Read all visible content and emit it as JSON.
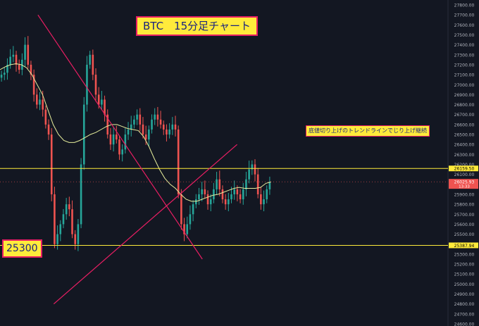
{
  "title": "BTC　15分足チャート",
  "annotation": "底値切り上げのトレンドラインでじり上げ継続",
  "support_label": "25300",
  "price_tags": [
    {
      "value": "26159.50",
      "color": "#ffeb3b",
      "text_color": "#000000"
    },
    {
      "value": "26025.93",
      "sub": "13:33",
      "color": "#ef5350",
      "text_color": "#ffffff"
    },
    {
      "value": "25387.94",
      "color": "#ffeb3b",
      "text_color": "#000000"
    }
  ],
  "colors": {
    "background": "#131722",
    "up": "#26a69a",
    "down": "#ef5350",
    "moving_average": "#e6ee9c",
    "horizontal_line": "#ffeb3b",
    "trend_line": "#e91e63",
    "axis_text": "#b2b5be"
  },
  "chart_data": {
    "type": "line",
    "symbol": "BTC",
    "interval": "15m",
    "y_axis": {
      "position": "right",
      "range": [
        24600,
        27800
      ],
      "ticks": [
        24600,
        24700,
        24800,
        24900,
        25000,
        25100,
        25200,
        25300,
        25400,
        25500,
        25600,
        25700,
        25800,
        25900,
        26000,
        26100,
        26200,
        26300,
        26400,
        26500,
        26600,
        26700,
        26800,
        26900,
        27000,
        27100,
        27200,
        27300,
        27400,
        27500,
        27600,
        27700,
        27800
      ]
    },
    "price_series": {
      "name": "",
      "values": [
        27100,
        27120,
        27200,
        27280,
        27300,
        27200,
        27150,
        27250,
        27400,
        27200,
        27100,
        26900,
        26800,
        26850,
        26750,
        26600,
        26500,
        25900,
        25400,
        25500,
        25600,
        25700,
        25800,
        25750,
        25500,
        25400,
        25600,
        26200,
        26800,
        27200,
        27300,
        27100,
        26900,
        26800,
        26850,
        26700,
        26500,
        26400,
        26500,
        26450,
        26300,
        26350,
        26500,
        26550,
        26600,
        26650,
        26700,
        26600,
        26500,
        26450,
        26550,
        26650,
        26700,
        26650,
        26600,
        26550,
        26500,
        26550,
        26600,
        26550,
        25900,
        25600,
        25500,
        25600,
        25700,
        25800,
        25850,
        25900,
        25950,
        25900,
        25800,
        25850,
        25950,
        26050,
        25950,
        25850,
        25800,
        25850,
        25900,
        25950,
        25900,
        25850,
        25950,
        26050,
        26150,
        26200,
        26100,
        25900,
        25800,
        25850,
        25950,
        26025
      ]
    },
    "moving_average": {
      "name": "",
      "values": [
        27150,
        27180,
        27200,
        27210,
        27200,
        27170,
        27100,
        27000,
        26900,
        26750,
        26600,
        26500,
        26440,
        26420,
        26420,
        26440,
        26470,
        26500,
        26520,
        26550,
        26580,
        26600,
        26600,
        26580,
        26560,
        26550,
        26540,
        26480,
        26380,
        26260,
        26150,
        26060,
        26000,
        25960,
        25900,
        25850,
        25830,
        25830,
        25850,
        25870,
        25890,
        25900,
        25920,
        25940,
        25960,
        25970,
        25960,
        25960,
        25960,
        25970,
        26010,
        26025
      ]
    },
    "horizontal_lines": [
      26159.5,
      25387.94
    ],
    "trend_lines": [
      {
        "from": {
          "bar": 0.12,
          "price": 27700
        },
        "to": {
          "bar": 0.64,
          "price": 25250
        }
      },
      {
        "from": {
          "bar": 0.17,
          "price": 24800
        },
        "to": {
          "bar": 0.75,
          "price": 26400
        }
      }
    ],
    "grid": false,
    "legend": false
  }
}
